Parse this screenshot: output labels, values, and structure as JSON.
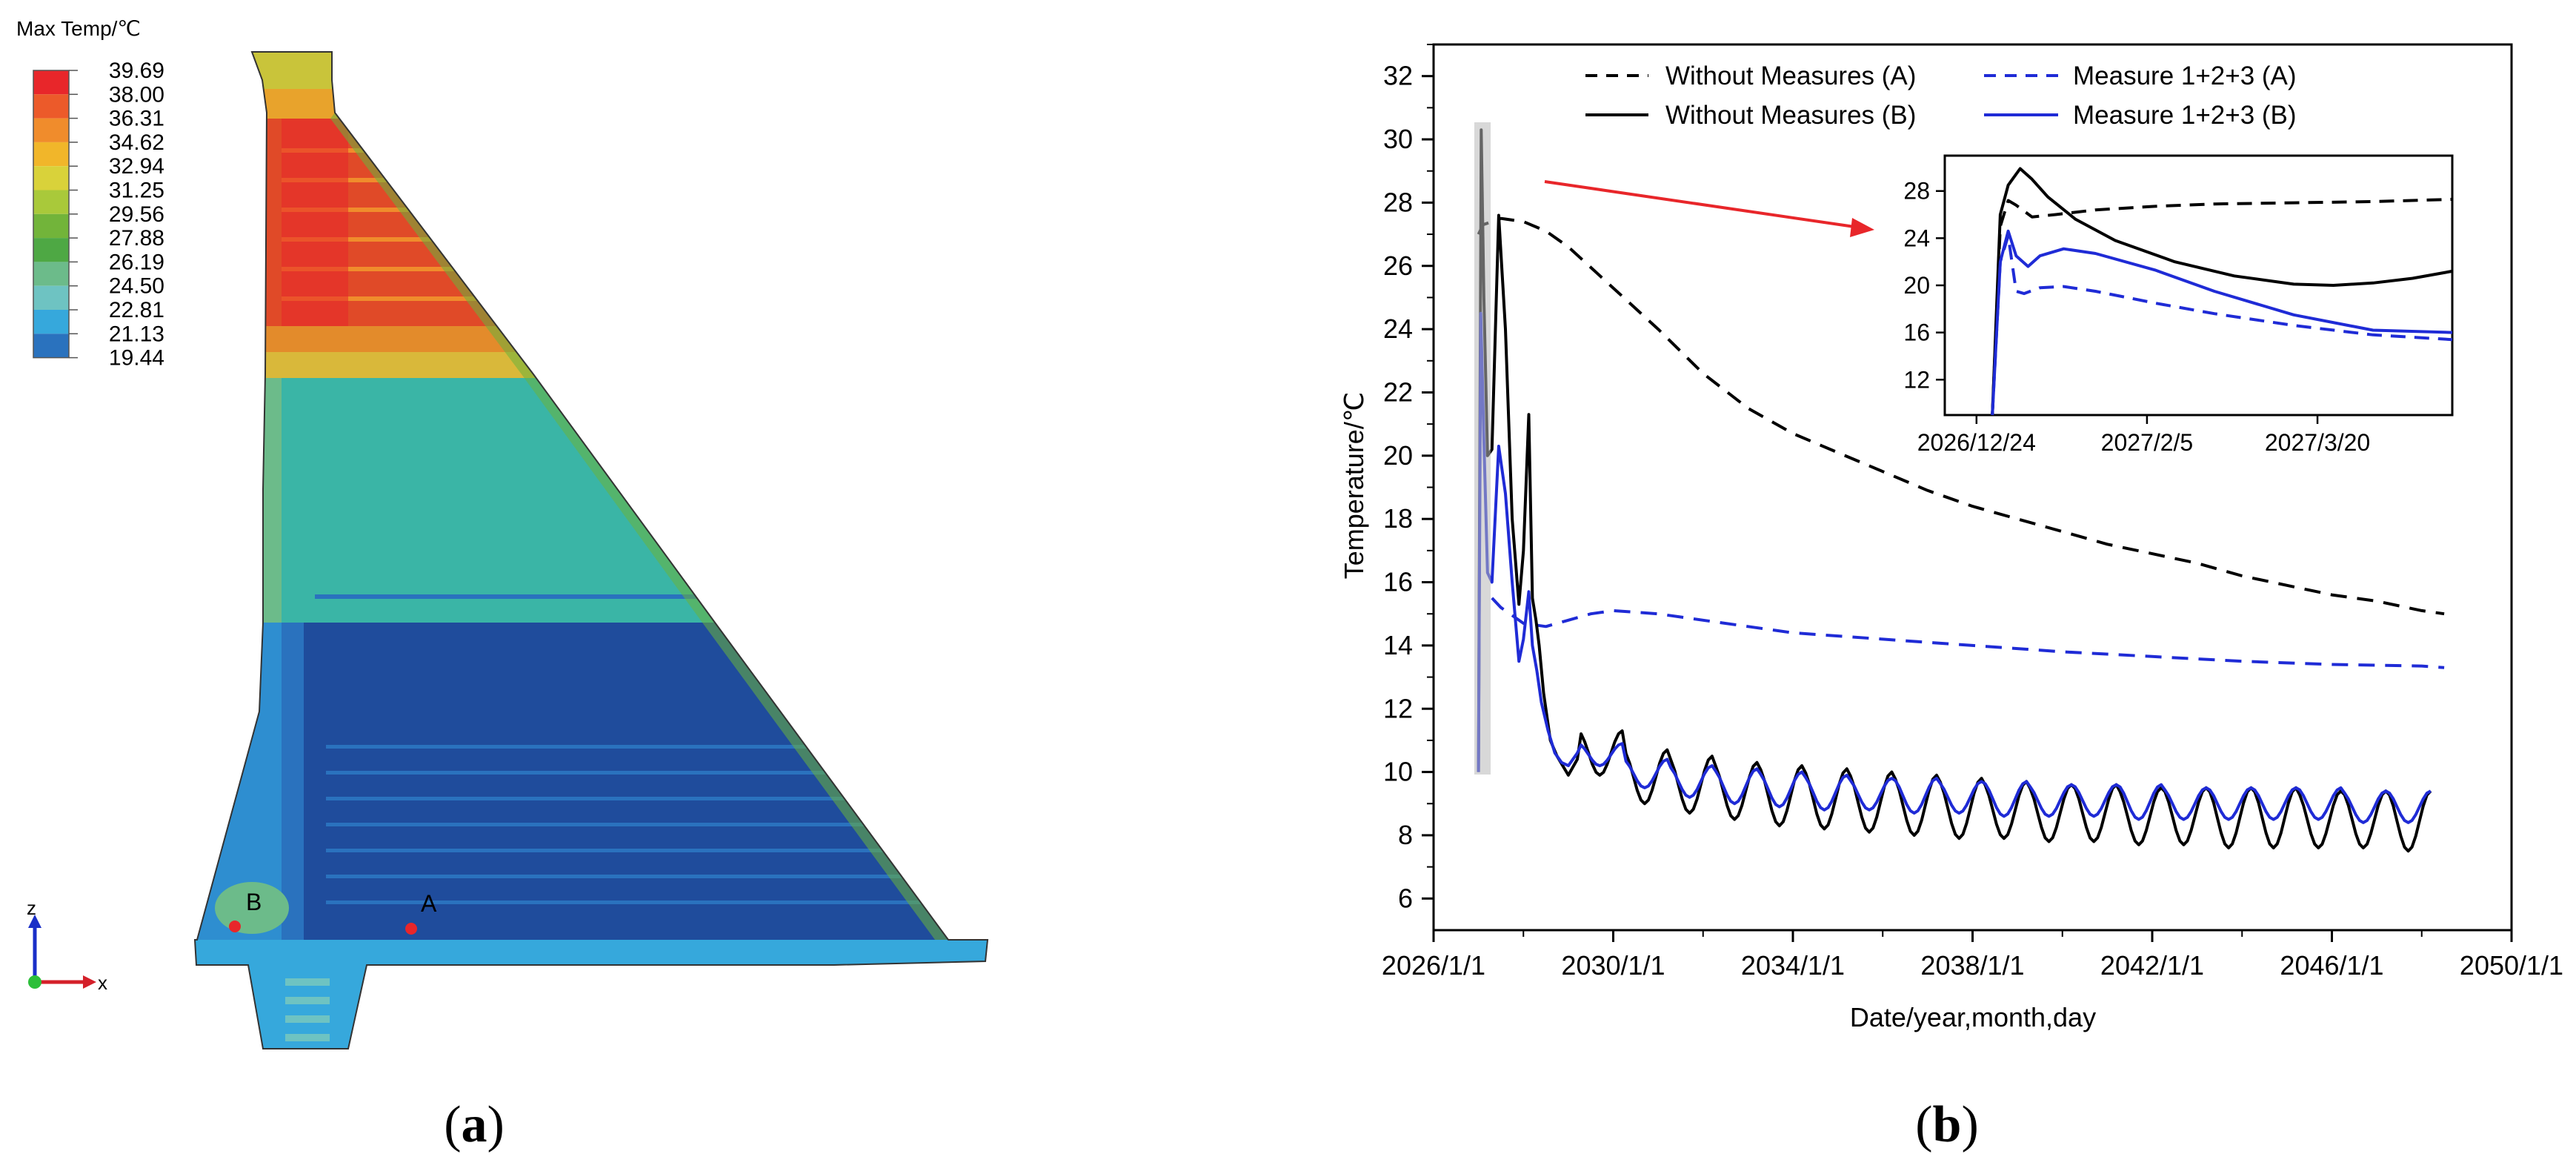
{
  "panel_a": {
    "legend": {
      "title": "Max Temp/℃",
      "values": [
        "39.69",
        "38.00",
        "36.31",
        "34.62",
        "32.94",
        "31.25",
        "29.56",
        "27.88",
        "26.19",
        "24.50",
        "22.81",
        "21.13",
        "19.44"
      ],
      "colors": [
        "#e8262a",
        "#ec5a2a",
        "#f08c2c",
        "#f1b62a",
        "#d9d23a",
        "#a9c93a",
        "#72b43a",
        "#4ea844",
        "#6cbb8a",
        "#6ec3c2",
        "#36a8dc",
        "#2a72be",
        "#1f4c9c"
      ]
    },
    "points": {
      "A": "A",
      "B": "B"
    },
    "axes": {
      "z": "z",
      "x": "x"
    },
    "caption": {
      "open": "(",
      "letter": "a",
      "close": ")"
    }
  },
  "panel_b": {
    "caption": {
      "open": "(",
      "letter": "b",
      "close": ")"
    },
    "legend": {
      "a_without": "Without Measures (A)",
      "a_measure": "Measure 1+2+3 (A)",
      "b_without": "Without Measures (B)",
      "b_measure": "Measure 1+2+3 (B)"
    }
  },
  "chart_data": [
    {
      "type": "line",
      "xlabel": "Date/year,month,day",
      "ylabel": "Temperature/℃",
      "xlim": [
        2026.0,
        2050.0
      ],
      "ylim": [
        5,
        33
      ],
      "x_ticks": [
        "2026/1/1",
        "2030/1/1",
        "2034/1/1",
        "2038/1/1",
        "2042/1/1",
        "2046/1/1",
        "2050/1/1"
      ],
      "x_tick_values": [
        2026,
        2030,
        2034,
        2038,
        2042,
        2046,
        2050
      ],
      "y_ticks": [
        6,
        8,
        10,
        12,
        14,
        16,
        18,
        20,
        22,
        24,
        26,
        28,
        30,
        32
      ],
      "series": [
        {
          "name": "Without Measures (A)",
          "color": "#000000",
          "dash": true,
          "x": [
            2027.0,
            2027.1,
            2027.5,
            2028.0,
            2028.5,
            2029.0,
            2030.0,
            2031.0,
            2032.0,
            2033.0,
            2034.0,
            2035.0,
            2036.0,
            2037.0,
            2038.0,
            2039.0,
            2040.0,
            2041.0,
            2042.0,
            2043.0,
            2044.0,
            2045.0,
            2046.0,
            2047.0,
            2048.0,
            2048.5
          ],
          "y": [
            27.0,
            27.3,
            27.5,
            27.4,
            27.1,
            26.6,
            25.3,
            24.0,
            22.6,
            21.5,
            20.7,
            20.1,
            19.5,
            18.9,
            18.4,
            18.0,
            17.6,
            17.2,
            16.9,
            16.6,
            16.2,
            15.9,
            15.6,
            15.4,
            15.1,
            15.0
          ]
        },
        {
          "name": "Measure 1+2+3 (A)",
          "color": "#1f2bd6",
          "dash": true,
          "x": [
            2027.3,
            2027.5,
            2028.0,
            2028.5,
            2029.0,
            2029.5,
            2030.0,
            2031.0,
            2032.0,
            2033.0,
            2034.0,
            2036.0,
            2038.0,
            2040.0,
            2042.0,
            2044.0,
            2046.0,
            2048.0,
            2048.5
          ],
          "y": [
            15.5,
            15.2,
            14.7,
            14.6,
            14.8,
            15.0,
            15.1,
            15.0,
            14.8,
            14.6,
            14.4,
            14.2,
            14.0,
            13.8,
            13.65,
            13.5,
            13.4,
            13.35,
            13.3
          ]
        }
      ],
      "series_b": {
        "without": {
          "name": "Without Measures (B)",
          "color": "#000000",
          "peaks": [
            11.3,
            10.7,
            10.5,
            10.3,
            10.2,
            10.1,
            10.0,
            9.9,
            9.8,
            9.7,
            9.6,
            9.6,
            9.5,
            9.5,
            9.5,
            9.5,
            9.4,
            9.4,
            9.4
          ],
          "troughs": [
            9.9,
            9.0,
            8.7,
            8.5,
            8.3,
            8.2,
            8.1,
            8.0,
            7.9,
            7.9,
            7.8,
            7.8,
            7.7,
            7.7,
            7.6,
            7.6,
            7.6,
            7.6,
            7.5
          ]
        },
        "measure": {
          "name": "Measure 1+2+3 (B)",
          "color": "#1f2bd6",
          "peaks": [
            10.9,
            10.4,
            10.2,
            10.1,
            10.0,
            9.9,
            9.8,
            9.8,
            9.7,
            9.7,
            9.6,
            9.6,
            9.6,
            9.5,
            9.5,
            9.5,
            9.5,
            9.4,
            9.4
          ],
          "troughs": [
            10.2,
            9.5,
            9.2,
            9.0,
            8.9,
            8.8,
            8.8,
            8.7,
            8.7,
            8.6,
            8.6,
            8.6,
            8.5,
            8.5,
            8.5,
            8.5,
            8.5,
            8.4,
            8.4
          ]
        },
        "early_without_x": [
          2027.0,
          2027.06,
          2027.12,
          2027.2,
          2027.3,
          2027.45,
          2027.6,
          2027.75,
          2027.9,
          2028.0,
          2028.12,
          2028.2,
          2028.28,
          2028.35,
          2028.45,
          2028.6,
          2028.75,
          2029.0,
          2029.2
        ],
        "early_without_y": [
          10.0,
          30.3,
          25.0,
          20.0,
          20.2,
          27.6,
          24.0,
          18.0,
          15.3,
          17.0,
          21.3,
          15.5,
          14.8,
          14.0,
          12.5,
          11.0,
          10.5,
          9.9,
          10.4
        ],
        "early_measure_x": [
          2027.0,
          2027.05,
          2027.12,
          2027.2,
          2027.3,
          2027.45,
          2027.6,
          2027.75,
          2027.9,
          2028.0,
          2028.12,
          2028.2,
          2028.3,
          2028.4,
          2028.55,
          2028.7,
          2028.85,
          2029.0,
          2029.2
        ],
        "early_measure_y": [
          10.0,
          24.5,
          20.5,
          16.3,
          16.0,
          20.3,
          18.8,
          16.0,
          13.5,
          14.2,
          15.7,
          14.0,
          13.2,
          12.2,
          11.3,
          10.6,
          10.3,
          10.2,
          10.6
        ]
      }
    },
    {
      "type": "line",
      "title": "",
      "x_ticks": [
        "2026/12/24",
        "2027/2/5",
        "2027/3/20"
      ],
      "x_tick_days": [
        0,
        43,
        86
      ],
      "xlim": [
        -8,
        120
      ],
      "ylim": [
        9,
        31
      ],
      "y_ticks": [
        12,
        16,
        20,
        24,
        28
      ],
      "series": [
        {
          "name": "Without Measures (A)",
          "color": "#000000",
          "dash": true,
          "x": [
            4,
            6,
            8,
            10,
            14,
            20,
            30,
            45,
            60,
            80,
            100,
            120
          ],
          "y": [
            9,
            25,
            27.2,
            26.8,
            25.8,
            26.0,
            26.4,
            26.7,
            26.9,
            27.0,
            27.1,
            27.3
          ]
        },
        {
          "name": "Measure 1+2+3 (A)",
          "color": "#1f2bd6",
          "dash": true,
          "x": [
            4,
            6,
            8,
            10,
            12,
            16,
            22,
            30,
            45,
            60,
            80,
            100,
            120
          ],
          "y": [
            9,
            22,
            24.2,
            19.5,
            19.3,
            19.8,
            19.9,
            19.5,
            18.5,
            17.6,
            16.6,
            15.8,
            15.4
          ]
        },
        {
          "name": "Without Measures (B)",
          "color": "#000000",
          "dash": false,
          "x": [
            4,
            6,
            8,
            11,
            14,
            18,
            25,
            35,
            50,
            65,
            80,
            90,
            100,
            110,
            120
          ],
          "y": [
            9,
            26,
            28.5,
            29.9,
            29.0,
            27.5,
            25.6,
            23.8,
            22.0,
            20.8,
            20.1,
            20.0,
            20.2,
            20.6,
            21.2
          ]
        },
        {
          "name": "Measure 1+2+3 (B)",
          "color": "#1f2bd6",
          "dash": false,
          "x": [
            4,
            6,
            8,
            10,
            13,
            16,
            22,
            30,
            45,
            60,
            80,
            100,
            120
          ],
          "y": [
            9,
            22,
            24.6,
            22.5,
            21.6,
            22.5,
            23.1,
            22.7,
            21.3,
            19.5,
            17.5,
            16.2,
            16.0
          ]
        }
      ]
    }
  ]
}
